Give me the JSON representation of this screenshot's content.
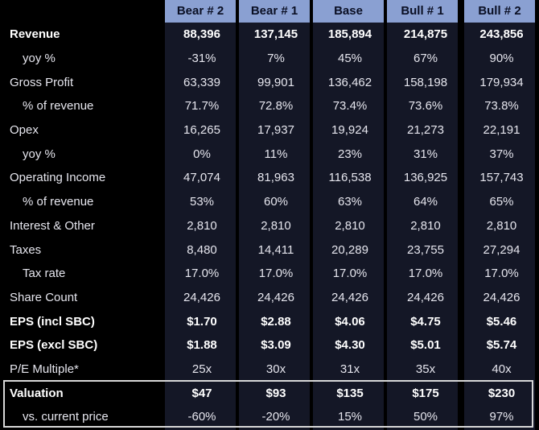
{
  "header": {
    "scenarios": [
      "Bear # 2",
      "Bear # 1",
      "Base",
      "Bull # 1",
      "Bull # 2"
    ]
  },
  "rows": [
    {
      "label": "Revenue",
      "indent": false,
      "bold": true,
      "values": [
        "88,396",
        "137,145",
        "185,894",
        "214,875",
        "243,856"
      ]
    },
    {
      "label": "yoy %",
      "indent": true,
      "bold": false,
      "values": [
        "-31%",
        "7%",
        "45%",
        "67%",
        "90%"
      ]
    },
    {
      "label": "Gross Profit",
      "indent": false,
      "bold": false,
      "values": [
        "63,339",
        "99,901",
        "136,462",
        "158,198",
        "179,934"
      ]
    },
    {
      "label": "% of revenue",
      "indent": true,
      "bold": false,
      "values": [
        "71.7%",
        "72.8%",
        "73.4%",
        "73.6%",
        "73.8%"
      ]
    },
    {
      "label": "Opex",
      "indent": false,
      "bold": false,
      "values": [
        "16,265",
        "17,937",
        "19,924",
        "21,273",
        "22,191"
      ]
    },
    {
      "label": "yoy %",
      "indent": true,
      "bold": false,
      "values": [
        "0%",
        "11%",
        "23%",
        "31%",
        "37%"
      ]
    },
    {
      "label": "Operating Income",
      "indent": false,
      "bold": false,
      "values": [
        "47,074",
        "81,963",
        "116,538",
        "136,925",
        "157,743"
      ]
    },
    {
      "label": "% of revenue",
      "indent": true,
      "bold": false,
      "values": [
        "53%",
        "60%",
        "63%",
        "64%",
        "65%"
      ]
    },
    {
      "label": "Interest & Other",
      "indent": false,
      "bold": false,
      "values": [
        "2,810",
        "2,810",
        "2,810",
        "2,810",
        "2,810"
      ]
    },
    {
      "label": "Taxes",
      "indent": false,
      "bold": false,
      "values": [
        "8,480",
        "14,411",
        "20,289",
        "23,755",
        "27,294"
      ]
    },
    {
      "label": "Tax rate",
      "indent": true,
      "bold": false,
      "values": [
        "17.0%",
        "17.0%",
        "17.0%",
        "17.0%",
        "17.0%"
      ]
    },
    {
      "label": "Share Count",
      "indent": false,
      "bold": false,
      "values": [
        "24,426",
        "24,426",
        "24,426",
        "24,426",
        "24,426"
      ]
    },
    {
      "label": "EPS (incl SBC)",
      "indent": false,
      "bold": true,
      "values": [
        "$1.70",
        "$2.88",
        "$4.06",
        "$4.75",
        "$5.46"
      ]
    },
    {
      "label": "EPS (excl SBC)",
      "indent": false,
      "bold": true,
      "values": [
        "$1.88",
        "$3.09",
        "$4.30",
        "$5.01",
        "$5.74"
      ]
    },
    {
      "label": "P/E Multiple*",
      "indent": false,
      "bold": false,
      "values": [
        "25x",
        "30x",
        "31x",
        "35x",
        "40x"
      ]
    },
    {
      "label": "Valuation",
      "indent": false,
      "bold": true,
      "values": [
        "$47",
        "$93",
        "$135",
        "$175",
        "$230"
      ]
    },
    {
      "label": "vs. current price",
      "indent": true,
      "bold": false,
      "values": [
        "-60%",
        "-20%",
        "15%",
        "50%",
        "97%"
      ]
    }
  ]
}
